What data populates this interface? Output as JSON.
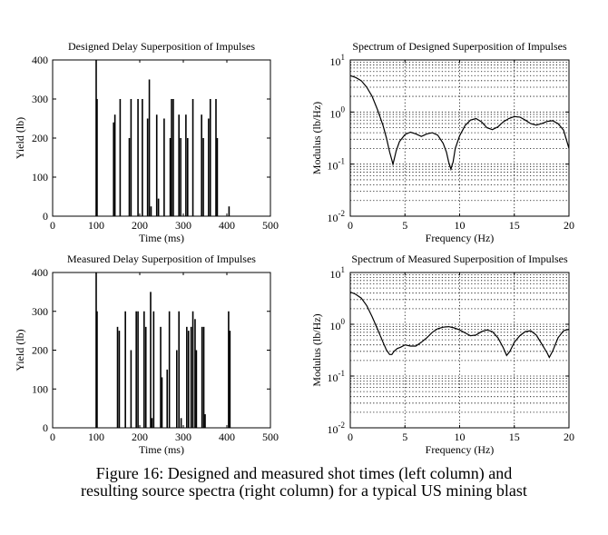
{
  "figure": {
    "caption_line1": "Figure 16: Designed and measured shot times (left column) and",
    "caption_line2": "resulting source spectra (right column) for a typical US mining blast"
  },
  "chart_data": [
    {
      "id": "tl",
      "type": "bar",
      "title": "Designed Delay Superposition of Impulses",
      "xlabel": "Time  (ms)",
      "ylabel": "Yield  (lb)",
      "xlim": [
        0,
        500
      ],
      "ylim": [
        0,
        400
      ],
      "xticks": [
        "0",
        "100",
        "200",
        "300",
        "400",
        "500"
      ],
      "yticks": [
        "0",
        "100",
        "200",
        "300",
        "400"
      ],
      "grid": false,
      "series": [
        {
          "x": [
            100,
            102,
            140,
            143,
            155,
            176,
            180,
            196,
            206,
            218,
            222,
            226,
            239,
            243,
            256,
            270,
            273,
            277,
            290,
            294,
            306,
            310,
            322,
            342,
            346,
            358,
            362,
            375,
            378,
            405
          ],
          "values": [
            400,
            300,
            240,
            260,
            300,
            200,
            300,
            300,
            300,
            250,
            350,
            25,
            260,
            45,
            250,
            200,
            300,
            300,
            260,
            200,
            260,
            200,
            300,
            260,
            200,
            250,
            300,
            300,
            200,
            25
          ]
        }
      ]
    },
    {
      "id": "tr",
      "type": "line",
      "title": "Spectrum of Designed Superposition of Impulses",
      "xlabel": "Frequency  (Hz)",
      "ylabel": "Modulus  (lb/Hz)",
      "xlim": [
        0,
        20
      ],
      "ylim": [
        0.01,
        10
      ],
      "yscale": "log",
      "xticks": [
        "0",
        "5",
        "10",
        "15",
        "20"
      ],
      "ytick_exponents": [
        "-2",
        "-1",
        "0",
        "1"
      ],
      "ytick_base": "10",
      "grid": true,
      "series": [
        {
          "x": [
            0,
            0.5,
            1,
            1.5,
            2,
            2.5,
            3,
            3.3,
            3.6,
            3.8,
            3.9,
            4.0,
            4.2,
            4.5,
            5,
            5.5,
            6,
            6.5,
            7,
            7.5,
            8,
            8.5,
            8.8,
            9.0,
            9.2,
            9.4,
            9.6,
            10,
            10.5,
            11,
            11.5,
            12,
            12.5,
            13,
            13.5,
            14,
            14.5,
            15,
            15.5,
            16,
            16.5,
            17,
            17.5,
            18,
            18.5,
            19,
            19.5,
            20
          ],
          "y": [
            5.0,
            4.6,
            4.0,
            3.0,
            2.0,
            1.1,
            0.55,
            0.32,
            0.17,
            0.12,
            0.1,
            0.12,
            0.18,
            0.27,
            0.37,
            0.41,
            0.38,
            0.34,
            0.38,
            0.4,
            0.36,
            0.25,
            0.17,
            0.11,
            0.08,
            0.11,
            0.2,
            0.35,
            0.55,
            0.7,
            0.75,
            0.65,
            0.5,
            0.46,
            0.52,
            0.65,
            0.75,
            0.82,
            0.8,
            0.7,
            0.6,
            0.56,
            0.6,
            0.66,
            0.68,
            0.6,
            0.45,
            0.2
          ]
        }
      ]
    },
    {
      "id": "bl",
      "type": "bar",
      "title": "Measured Delay Superposition of Impulses",
      "xlabel": "Time  (ms)",
      "ylabel": "Yield  (lb)",
      "xlim": [
        0,
        500
      ],
      "ylim": [
        0,
        400
      ],
      "xticks": [
        "0",
        "100",
        "200",
        "300",
        "400",
        "500"
      ],
      "yticks": [
        "0",
        "100",
        "200",
        "300",
        "400"
      ],
      "grid": false,
      "series": [
        {
          "x": [
            100,
            102,
            149,
            153,
            167,
            180,
            192,
            196,
            210,
            214,
            225,
            228,
            232,
            248,
            251,
            263,
            268,
            285,
            290,
            295,
            308,
            312,
            318,
            322,
            327,
            330,
            343,
            347,
            350,
            404,
            407
          ],
          "values": [
            400,
            300,
            260,
            250,
            300,
            200,
            300,
            300,
            300,
            260,
            350,
            25,
            300,
            260,
            130,
            150,
            300,
            200,
            300,
            25,
            260,
            250,
            260,
            300,
            280,
            200,
            260,
            260,
            35,
            300,
            250
          ]
        }
      ]
    },
    {
      "id": "br",
      "type": "line",
      "title": "Spectrum of Measured Superposition of Impulses",
      "xlabel": "Frequency  (Hz)",
      "ylabel": "Modulus  (lb/Hz)",
      "xlim": [
        0,
        20
      ],
      "ylim": [
        0.01,
        10
      ],
      "yscale": "log",
      "xticks": [
        "0",
        "5",
        "10",
        "15",
        "20"
      ],
      "ytick_exponents": [
        "-2",
        "-1",
        "0",
        "1"
      ],
      "ytick_base": "10",
      "grid": true,
      "series": [
        {
          "x": [
            0,
            0.5,
            1,
            1.5,
            2,
            2.5,
            3,
            3.3,
            3.6,
            3.8,
            4.0,
            4.3,
            4.6,
            5,
            5.5,
            6,
            6.5,
            7,
            7.5,
            8,
            8.5,
            9,
            9.5,
            10,
            10.5,
            11,
            11.5,
            12,
            12.5,
            13,
            13.5,
            14,
            14.3,
            14.6,
            15,
            15.5,
            16,
            16.5,
            17,
            17.5,
            18,
            18.2,
            18.5,
            19,
            19.5,
            20
          ],
          "y": [
            4.2,
            3.8,
            3.2,
            2.3,
            1.4,
            0.8,
            0.45,
            0.32,
            0.26,
            0.26,
            0.3,
            0.34,
            0.36,
            0.4,
            0.38,
            0.38,
            0.45,
            0.55,
            0.7,
            0.82,
            0.88,
            0.9,
            0.85,
            0.78,
            0.68,
            0.6,
            0.62,
            0.72,
            0.78,
            0.72,
            0.55,
            0.35,
            0.25,
            0.3,
            0.45,
            0.6,
            0.72,
            0.75,
            0.62,
            0.42,
            0.28,
            0.23,
            0.3,
            0.55,
            0.75,
            0.8
          ]
        }
      ]
    }
  ]
}
